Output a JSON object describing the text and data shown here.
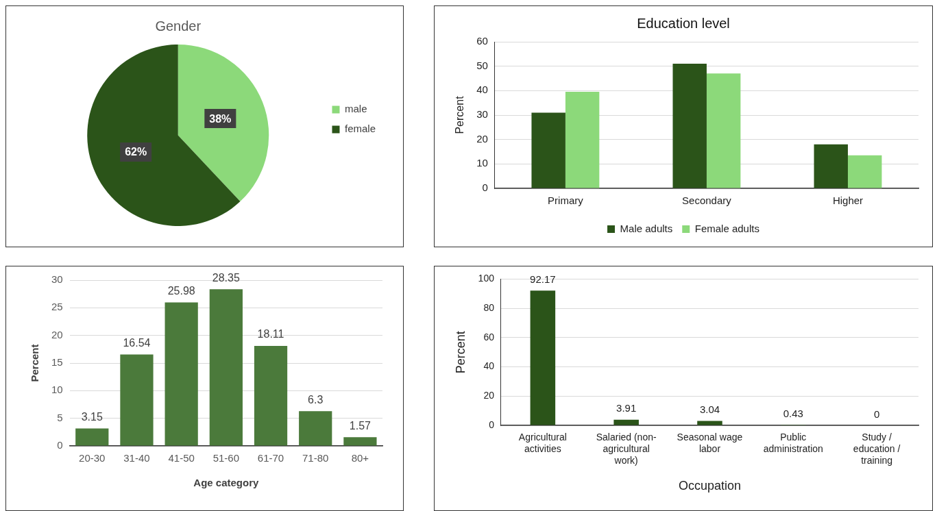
{
  "chart_data": [
    {
      "type": "pie",
      "title": "Gender",
      "categories": [
        "male",
        "female"
      ],
      "values": [
        38,
        62
      ],
      "colors": [
        "#8cd97a",
        "#2b5419"
      ],
      "value_labels": [
        "38%",
        "62%"
      ],
      "legend": "right"
    },
    {
      "type": "bar",
      "title": "Education level",
      "ylabel": "Percent",
      "categories": [
        "Primary",
        "Secondary",
        "Higher"
      ],
      "series": [
        {
          "name": "Male adults",
          "color": "#2b5419",
          "values": [
            31,
            51,
            18
          ]
        },
        {
          "name": "Female adults",
          "color": "#8cd97a",
          "values": [
            39.5,
            47,
            13.5
          ]
        }
      ],
      "ylim": [
        0,
        60
      ],
      "yticks": [
        0,
        10,
        20,
        30,
        40,
        50,
        60
      ],
      "grid": "y",
      "legend": "bottom"
    },
    {
      "type": "bar",
      "xlabel": "Age category",
      "ylabel": "Percent",
      "categories": [
        "20-30",
        "31-40",
        "41-50",
        "51-60",
        "61-70",
        "71-80",
        "80+"
      ],
      "values": [
        3.15,
        16.54,
        25.98,
        28.35,
        18.11,
        6.3,
        1.57
      ],
      "color": "#4b7a3b",
      "ylim": [
        0,
        30
      ],
      "yticks": [
        0,
        5,
        10,
        15,
        20,
        25,
        30
      ],
      "grid": "y",
      "data_labels": true
    },
    {
      "type": "bar",
      "xlabel": "Occupation",
      "ylabel": "Percent",
      "categories": [
        "Agricultural activities",
        "Salaried (non-agricultural work)",
        "Seasonal wage labor",
        "Public administration",
        "Study / education / training"
      ],
      "values": [
        92.17,
        3.91,
        3.04,
        0.43,
        0
      ],
      "color": "#2b5419",
      "ylim": [
        0,
        100
      ],
      "yticks": [
        0,
        20,
        40,
        60,
        80,
        100
      ],
      "grid": "y",
      "data_labels": true
    }
  ]
}
